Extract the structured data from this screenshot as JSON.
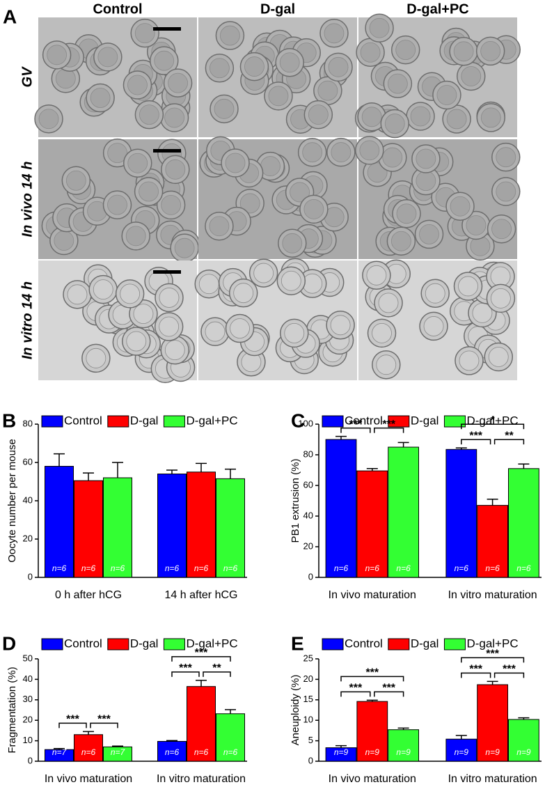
{
  "panel_a": {
    "label": "A",
    "columns": [
      "Control",
      "D-gal",
      "D-gal+PC"
    ],
    "rows": [
      "GV",
      "In vivo 14 h",
      "In vitro 14 h"
    ]
  },
  "chart_data": [
    {
      "type": "bar",
      "panel": "B",
      "y_label": "Oocyte number per mouse",
      "categories": [
        "0 h after hCG",
        "14 h after hCG"
      ],
      "series": [
        {
          "name": "Control",
          "color": "#0000ff",
          "values": [
            58,
            54
          ],
          "errors": [
            6.5,
            2
          ],
          "n_labels": [
            "n=6",
            "n=6"
          ]
        },
        {
          "name": "D-gal",
          "color": "#ff0000",
          "values": [
            50.5,
            55
          ],
          "errors": [
            4,
            4.5
          ],
          "n_labels": [
            "n=6",
            "n=6"
          ]
        },
        {
          "name": "D-gal+PC",
          "color": "#33ff33",
          "values": [
            52,
            51.5
          ],
          "errors": [
            8,
            5
          ],
          "n_labels": [
            "n=6",
            "n=6"
          ]
        }
      ],
      "ylim": [
        0,
        80
      ],
      "yticks": [
        0,
        20,
        40,
        60,
        80
      ]
    },
    {
      "type": "bar",
      "panel": "C",
      "y_label": "PB1 extrusion (%)",
      "categories": [
        "In vivo maturation",
        "In vitro maturation"
      ],
      "series": [
        {
          "name": "Control",
          "color": "#0000ff",
          "values": [
            90,
            83.5
          ],
          "errors": [
            2,
            1
          ],
          "n_labels": [
            "n=6",
            "n=6"
          ]
        },
        {
          "name": "D-gal",
          "color": "#ff0000",
          "values": [
            69.5,
            47
          ],
          "errors": [
            1.5,
            4
          ],
          "n_labels": [
            "n=6",
            "n=6"
          ]
        },
        {
          "name": "D-gal+PC",
          "color": "#33ff33",
          "values": [
            85,
            71
          ],
          "errors": [
            3,
            3
          ],
          "n_labels": [
            "n=6",
            "n=6"
          ]
        }
      ],
      "annotations": [
        [
          "***",
          "***"
        ],
        [
          "***",
          "**",
          "*"
        ]
      ],
      "ylim": [
        0,
        100
      ],
      "yticks": [
        0,
        20,
        40,
        60,
        80,
        100
      ]
    },
    {
      "type": "bar",
      "panel": "D",
      "y_label": "Fragmentation (%)",
      "categories": [
        "In vivo maturation",
        "In vitro maturation"
      ],
      "series": [
        {
          "name": "Control",
          "color": "#0000ff",
          "values": [
            5.7,
            9.7
          ],
          "errors": [
            0.5,
            0.4
          ],
          "n_labels": [
            "n=7",
            "n=6"
          ]
        },
        {
          "name": "D-gal",
          "color": "#ff0000",
          "values": [
            13,
            36.5
          ],
          "errors": [
            1.5,
            3
          ],
          "n_labels": [
            "n=6",
            "n=6"
          ]
        },
        {
          "name": "D-gal+PC",
          "color": "#33ff33",
          "values": [
            7,
            23.2
          ],
          "errors": [
            0.4,
            2
          ],
          "n_labels": [
            "n=7",
            "n=6"
          ]
        }
      ],
      "annotations": [
        [
          "***",
          "***"
        ],
        [
          "***",
          "**",
          "***"
        ]
      ],
      "ylim": [
        0,
        50
      ],
      "yticks": [
        0,
        10,
        20,
        30,
        40,
        50
      ]
    },
    {
      "type": "bar",
      "panel": "E",
      "y_label": "Aneuploidy (%)",
      "categories": [
        "In vivo maturation",
        "In vitro maturation"
      ],
      "series": [
        {
          "name": "Control",
          "color": "#0000ff",
          "values": [
            3.3,
            5.4
          ],
          "errors": [
            0.5,
            0.9
          ],
          "n_labels": [
            "n=9",
            "n=9"
          ]
        },
        {
          "name": "D-gal",
          "color": "#ff0000",
          "values": [
            14.6,
            18.7
          ],
          "errors": [
            0.3,
            0.8
          ],
          "n_labels": [
            "n=9",
            "n=9"
          ]
        },
        {
          "name": "D-gal+PC",
          "color": "#33ff33",
          "values": [
            7.7,
            10.2
          ],
          "errors": [
            0.4,
            0.4
          ],
          "n_labels": [
            "n=9",
            "n=9"
          ]
        }
      ],
      "annotations": [
        [
          "***",
          "***",
          "***"
        ],
        [
          "***",
          "***",
          "***"
        ]
      ],
      "ylim": [
        0,
        25
      ],
      "yticks": [
        0,
        5,
        10,
        15,
        20,
        25
      ]
    }
  ]
}
